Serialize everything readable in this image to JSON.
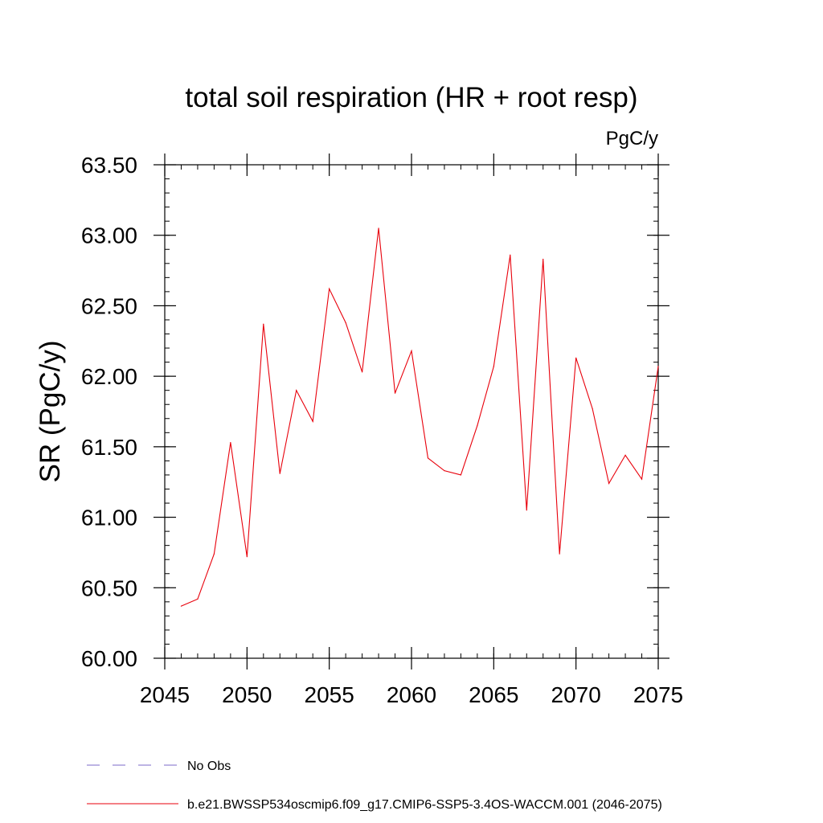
{
  "chart_data": {
    "type": "line",
    "title": "total soil respiration (HR + root resp)",
    "units": "PgC/y",
    "ylabel": "SR  (PgC/y)",
    "xlabel": "",
    "xlim": [
      2045,
      2075
    ],
    "ylim": [
      60.0,
      63.5
    ],
    "xticks": [
      "2045",
      "2050",
      "2055",
      "2060",
      "2065",
      "2070",
      "2075"
    ],
    "xtick_values": [
      2045,
      2050,
      2055,
      2060,
      2065,
      2070,
      2075
    ],
    "yticks": [
      "60.00",
      "60.50",
      "61.00",
      "61.50",
      "62.00",
      "62.50",
      "63.00",
      "63.50"
    ],
    "ytick_values": [
      60.0,
      60.5,
      61.0,
      61.5,
      62.0,
      62.5,
      63.0,
      63.5
    ],
    "series": [
      {
        "name": "b.e21.BWSSP534oscmip6.f09_g17.CMIP6-SSP5-3.4OS-WACCM.001 (2046-2075)",
        "color": "#e8000b",
        "x": [
          2046,
          2047,
          2048,
          2049,
          2050,
          2051,
          2052,
          2053,
          2054,
          2055,
          2056,
          2057,
          2058,
          2059,
          2060,
          2061,
          2062,
          2063,
          2064,
          2065,
          2066,
          2067,
          2068,
          2069,
          2070,
          2071,
          2072,
          2073,
          2074,
          2075
        ],
        "values": [
          60.37,
          60.42,
          60.74,
          61.53,
          60.72,
          62.37,
          61.31,
          61.9,
          61.68,
          62.62,
          62.38,
          62.03,
          63.05,
          61.88,
          62.18,
          61.42,
          61.33,
          61.3,
          61.65,
          62.07,
          62.86,
          61.05,
          62.83,
          60.74,
          62.13,
          61.77,
          61.24,
          61.44,
          61.27,
          62.07
        ]
      }
    ],
    "legend": [
      {
        "label": "No Obs",
        "color": "#7b68c8",
        "style": "dashed"
      },
      {
        "label": "b.e21.BWSSP534oscmip6.f09_g17.CMIP6-SSP5-3.4OS-WACCM.001 (2046-2075)",
        "color": "#e8000b",
        "style": "solid"
      }
    ],
    "legend_position": "bottom-left",
    "grid": false
  }
}
